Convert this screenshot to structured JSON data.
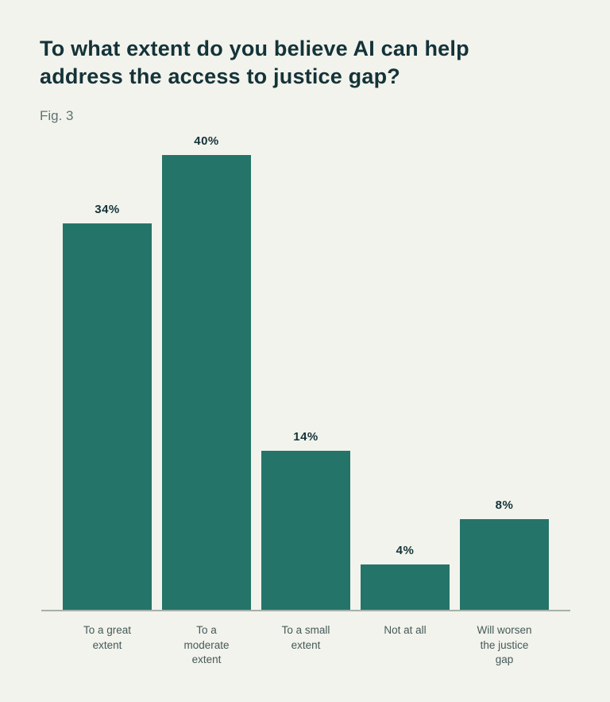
{
  "header": {
    "title_display": "To what extent do you believe AI can help\naddress the access to justice gap?",
    "figure_label": "Fig. 3"
  },
  "chart_data": {
    "type": "bar",
    "title": "To what extent do you believe AI can help address the access to justice gap?",
    "figure_label": "Fig. 3",
    "categories": [
      "To a great extent",
      "To a moderate extent",
      "To a small extent",
      "Not at all",
      "Will worsen the justice gap"
    ],
    "values": [
      34,
      40,
      14,
      4,
      8
    ],
    "value_labels": [
      "34%",
      "40%",
      "14%",
      "4%",
      "8%"
    ],
    "category_display": [
      "To a great\nextent",
      "To a\nmoderate\nextent",
      "To a small\nextent",
      "Not at all",
      "Will worsen\nthe justice\ngap"
    ],
    "value_suffix": "%",
    "xlabel": "",
    "ylabel": "",
    "ylim": [
      0,
      40
    ],
    "grid": false,
    "legend": "none",
    "colors": {
      "bar": "#24746a",
      "background": "#f2f3ec",
      "title_text": "#143339",
      "value_label_text": "#143339",
      "category_text": "#45595a",
      "figure_label_text": "#5b7472",
      "axis_line": "#a6b0aa"
    }
  }
}
